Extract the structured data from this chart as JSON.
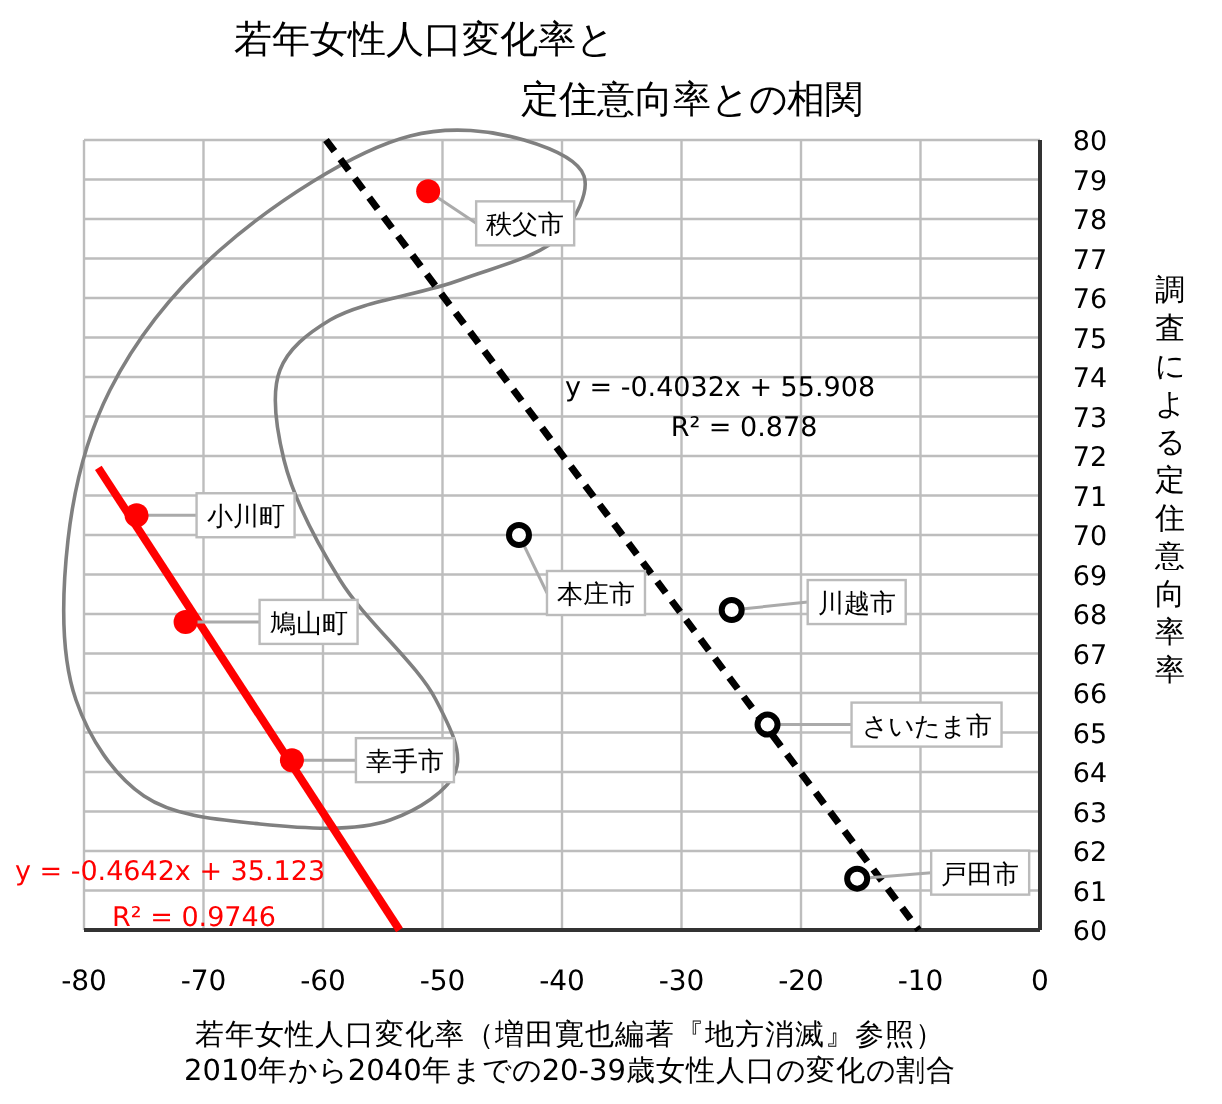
{
  "chart_data": {
    "type": "scatter",
    "title": "若年女性人口変化率と定住意向率との相関",
    "xlabel": "若年女性人口変化率（増田寛也編著『地方消滅』参照）\n2010年から2040年までの20-39歳女性人口の変化の割合",
    "ylabel": "調査による定住意向率率",
    "xlim": [
      -80,
      0
    ],
    "xticks": [
      -80,
      -70,
      -60,
      -50,
      -40,
      -30,
      -20,
      -10,
      0
    ],
    "ylim": [
      60,
      80
    ],
    "yticks": [
      60,
      61,
      62,
      63,
      64,
      65,
      66,
      67,
      68,
      69,
      70,
      71,
      72,
      73,
      74,
      75,
      76,
      77,
      78,
      79,
      80
    ],
    "grid": true,
    "marker": "circle",
    "series": [
      {
        "color": "#ff0000",
        "x": [
          -51.2,
          -75.6,
          -71.5,
          -62.6
        ],
        "values": [
          78.7,
          70.5,
          67.8,
          64.3
        ]
      },
      {
        "color": "#000000",
        "x": [
          -43.6,
          -25.8,
          -22.8,
          -15.3
        ],
        "values": [
          70.0,
          68.1,
          65.2,
          61.3
        ]
      },
      {
        "type": "line",
        "color": "#ff0000",
        "line_style": "solid",
        "marker": "none",
        "x": [
          -78.8,
          -53.6
        ],
        "values": [
          71.7,
          60.0
        ]
      },
      {
        "type": "line",
        "color": "#000000",
        "line_style": "dashed",
        "marker": "none",
        "x": [
          -59.75,
          -10.15
        ],
        "values": [
          80.0,
          60.0
        ]
      }
    ],
    "annotations": [
      {
        "text": "秩父市",
        "x": -51.2,
        "y": 78.7
      },
      {
        "text": "小川町",
        "x": -75.6,
        "y": 70.5
      },
      {
        "text": "鳩山町",
        "x": -71.5,
        "y": 67.8
      },
      {
        "text": "幸手市",
        "x": -62.6,
        "y": 64.3
      },
      {
        "text": "本庄市",
        "x": -43.6,
        "y": 70.0
      },
      {
        "text": "川越市",
        "x": -25.8,
        "y": 68.1
      },
      {
        "text": "さいたま市",
        "x": -22.8,
        "y": 65.2
      },
      {
        "text": "戸田市",
        "x": -15.3,
        "y": 61.3
      },
      "y = -0.4032x + 55.908",
      "R² = 0.878",
      "y = -0.4642x + 35.123",
      "R² = 0.9746"
    ]
  }
}
